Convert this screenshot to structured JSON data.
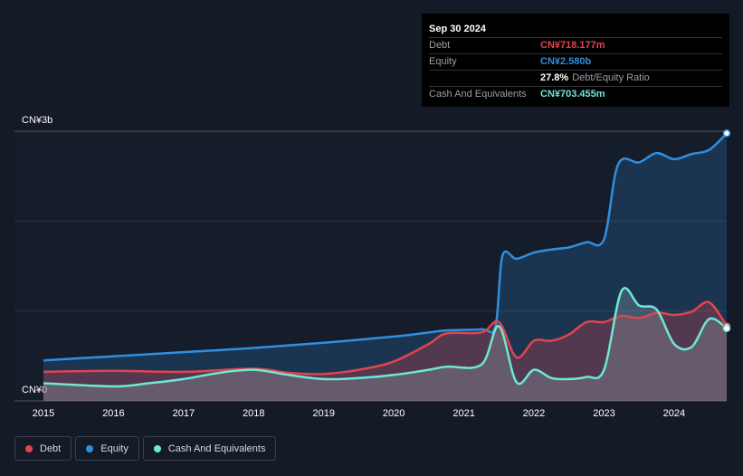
{
  "tooltip": {
    "date": "Sep 30 2024",
    "rows": [
      {
        "label": "Debt",
        "value": "CN¥718.177m",
        "color": "#e2444e"
      },
      {
        "label": "Equity",
        "value": "CN¥2.580b",
        "color": "#2f8fe0"
      },
      {
        "label": "",
        "value": "27.8%",
        "suffix": "Debt/Equity Ratio",
        "color": "#ffffff"
      },
      {
        "label": "Cash And Equivalents",
        "value": "CN¥703.455m",
        "color": "#6ee8d6"
      }
    ]
  },
  "legend": [
    {
      "label": "Debt",
      "color": "#e2444e"
    },
    {
      "label": "Equity",
      "color": "#2f8fe0"
    },
    {
      "label": "Cash And Equivalents",
      "color": "#6ee8d6"
    }
  ],
  "chart_data": {
    "type": "area",
    "y_top_label": "CN¥3b",
    "y_bottom_label": "CN¥0",
    "ylim": [
      0,
      2.6
    ],
    "xlim": [
      2015.0,
      2024.75
    ],
    "x_ticks": [
      "2015",
      "2016",
      "2017",
      "2018",
      "2019",
      "2020",
      "2021",
      "2022",
      "2023",
      "2024"
    ],
    "grid": true,
    "legend_position": "bottom-left",
    "series": [
      {
        "name": "Equity",
        "color": "#2f8fe0",
        "points": [
          [
            2015.0,
            0.39
          ],
          [
            2016.0,
            0.43
          ],
          [
            2017.0,
            0.47
          ],
          [
            2018.0,
            0.51
          ],
          [
            2019.0,
            0.56
          ],
          [
            2020.0,
            0.62
          ],
          [
            2020.5,
            0.66
          ],
          [
            2020.75,
            0.68
          ],
          [
            2021.25,
            0.69
          ],
          [
            2021.45,
            0.72
          ],
          [
            2021.55,
            1.4
          ],
          [
            2021.75,
            1.37
          ],
          [
            2022.0,
            1.43
          ],
          [
            2022.25,
            1.46
          ],
          [
            2022.5,
            1.48
          ],
          [
            2022.75,
            1.53
          ],
          [
            2023.0,
            1.56
          ],
          [
            2023.2,
            2.28
          ],
          [
            2023.5,
            2.3
          ],
          [
            2023.75,
            2.39
          ],
          [
            2024.0,
            2.33
          ],
          [
            2024.25,
            2.38
          ],
          [
            2024.5,
            2.42
          ],
          [
            2024.75,
            2.58
          ]
        ]
      },
      {
        "name": "Debt",
        "color": "#e2444e",
        "points": [
          [
            2015.0,
            0.28
          ],
          [
            2016.0,
            0.29
          ],
          [
            2017.0,
            0.28
          ],
          [
            2018.0,
            0.31
          ],
          [
            2018.5,
            0.27
          ],
          [
            2019.0,
            0.26
          ],
          [
            2019.5,
            0.3
          ],
          [
            2020.0,
            0.38
          ],
          [
            2020.5,
            0.55
          ],
          [
            2020.75,
            0.65
          ],
          [
            2021.25,
            0.66
          ],
          [
            2021.5,
            0.76
          ],
          [
            2021.75,
            0.42
          ],
          [
            2022.0,
            0.58
          ],
          [
            2022.25,
            0.58
          ],
          [
            2022.5,
            0.64
          ],
          [
            2022.75,
            0.76
          ],
          [
            2023.0,
            0.76
          ],
          [
            2023.25,
            0.82
          ],
          [
            2023.5,
            0.8
          ],
          [
            2023.75,
            0.85
          ],
          [
            2024.0,
            0.83
          ],
          [
            2024.25,
            0.86
          ],
          [
            2024.5,
            0.95
          ],
          [
            2024.75,
            0.72
          ]
        ]
      },
      {
        "name": "Cash And Equivalents",
        "color": "#6ee8d6",
        "points": [
          [
            2015.0,
            0.17
          ],
          [
            2016.0,
            0.14
          ],
          [
            2016.5,
            0.17
          ],
          [
            2017.0,
            0.21
          ],
          [
            2017.5,
            0.27
          ],
          [
            2018.0,
            0.3
          ],
          [
            2018.5,
            0.25
          ],
          [
            2019.0,
            0.21
          ],
          [
            2019.5,
            0.22
          ],
          [
            2020.0,
            0.25
          ],
          [
            2020.5,
            0.3
          ],
          [
            2020.75,
            0.33
          ],
          [
            2021.25,
            0.35
          ],
          [
            2021.5,
            0.72
          ],
          [
            2021.75,
            0.18
          ],
          [
            2022.0,
            0.3
          ],
          [
            2022.25,
            0.22
          ],
          [
            2022.5,
            0.21
          ],
          [
            2022.75,
            0.23
          ],
          [
            2023.0,
            0.3
          ],
          [
            2023.25,
            1.06
          ],
          [
            2023.5,
            0.92
          ],
          [
            2023.75,
            0.88
          ],
          [
            2024.0,
            0.55
          ],
          [
            2024.25,
            0.52
          ],
          [
            2024.5,
            0.79
          ],
          [
            2024.75,
            0.7
          ]
        ]
      }
    ]
  }
}
